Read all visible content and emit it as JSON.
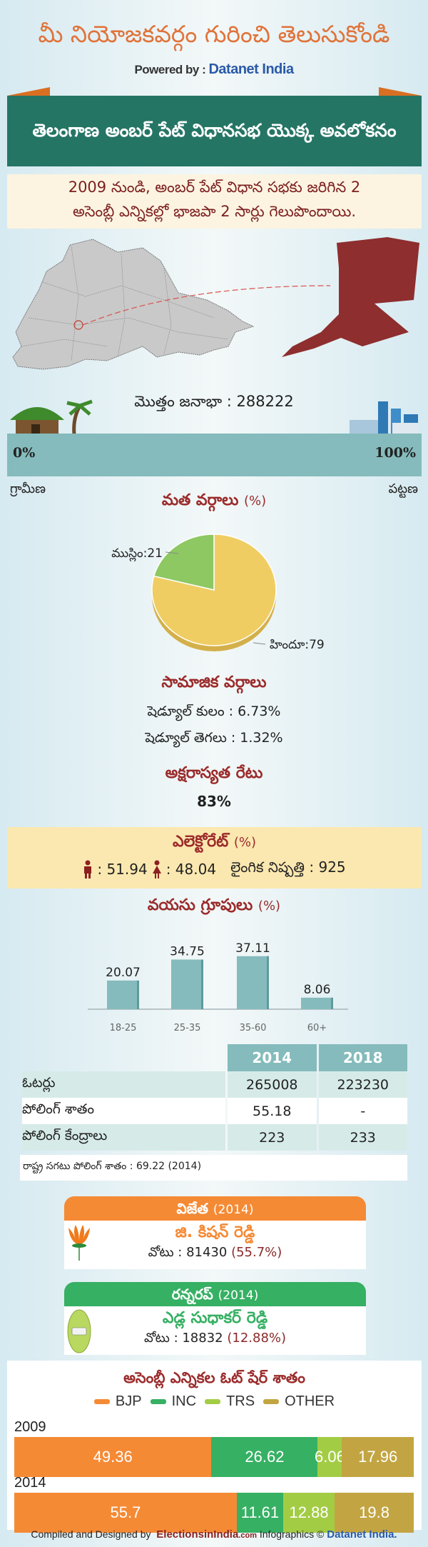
{
  "header": {
    "title": "మీ నియోజకవర్గం గురించి తెలుసుకోండి",
    "powered_by": "Powered by :",
    "brand": "Datanet India"
  },
  "ribbon": {
    "title": "తెలంగాణ అంబర్ పేట్ విధానసభ యొక్క అవలోకనం"
  },
  "summary": {
    "line1": "2009 నుండి, అంబర్ పేట్ విధాన సభకు జరిగిన 2",
    "line2": "అసెంబ్లీ ఎన్నికల్లో భాజపా 2 సార్లు గెలుపొందాయి."
  },
  "population": {
    "label": "మొత్తం జనాభా : 288222",
    "rural_pct": "0%",
    "urban_pct": "100%",
    "rural_label": "గ్రామీణ",
    "urban_label": "పట్టణ",
    "urban_fraction": 1.0
  },
  "religion": {
    "heading": "మత వర్గాలు",
    "unit": "(%)"
  },
  "chart_data": [
    {
      "type": "pie",
      "title": "మత వర్గాలు (%)",
      "slices": [
        {
          "label": "హిందూ:79",
          "name": "హిందూ",
          "value": 79,
          "color": "#f0cd63"
        },
        {
          "label": "ముస్లిం:21",
          "name": "ముస్లిం",
          "value": 21,
          "color": "#8dc863"
        }
      ]
    },
    {
      "type": "bar",
      "title": "వయసు గ్రూపులు (%)",
      "categories": [
        "18-25",
        "25-35",
        "35-60",
        "60+"
      ],
      "values": [
        20.07,
        34.75,
        37.11,
        8.06
      ],
      "labels": [
        "20.07",
        "34.75",
        "37.11",
        "8.06"
      ],
      "color": "#85bbbc"
    },
    {
      "type": "bar",
      "stacked": true,
      "orientation": "horizontal",
      "title": "అసెంబ్లీ ఎన్నికల ఓట్ షేర్ శాతం",
      "legend": "top",
      "series_names": [
        "BJP",
        "INC",
        "TRS",
        "OTHER"
      ],
      "colors": [
        "#f58a35",
        "#36b063",
        "#a3cc45",
        "#c2a542"
      ],
      "rows": [
        {
          "year": "2009",
          "values": [
            49.36,
            26.62,
            6.06,
            17.96
          ],
          "labels": [
            "49.36",
            "26.62",
            "6.06",
            "17.96"
          ]
        },
        {
          "year": "2014",
          "values": [
            55.7,
            11.61,
            12.88,
            19.8
          ],
          "labels": [
            "55.7",
            "11.61",
            "12.88",
            "19.8"
          ]
        }
      ]
    }
  ],
  "social": {
    "heading": "సామాజిక వర్గాలు",
    "sc": "షెడ్యూల్ కులం :   6.73%",
    "st": "షెడ్యూల్ తెగలు :   1.32%"
  },
  "literacy": {
    "heading": "అక్షరాస్యత రేటు",
    "value": "83%"
  },
  "electorate": {
    "heading": "ఎలెక్టోరేట్",
    "unit": "(%)",
    "male": ": 51.94",
    "female": ": 48.04",
    "sex_ratio": "లైంగిక నిష్పత్తి : 925"
  },
  "age": {
    "heading": "వయసు గ్రూపులు",
    "unit": "(%)"
  },
  "table": {
    "years": [
      "2014",
      "2018"
    ],
    "rows": [
      {
        "label": "ఓటర్లు",
        "v2014": "265008",
        "v2018": "223230"
      },
      {
        "label": "పోలింగ్ శాతం",
        "v2014": "55.18",
        "v2018": "-"
      },
      {
        "label": "పోలింగ్ కేంద్రాలు",
        "v2014": "223",
        "v2018": "233"
      }
    ],
    "footnote": "రాష్ట్ర సగటు పోలింగ్ శాతం : 69.22 (2014)"
  },
  "winner": {
    "heading": "విజేత",
    "year": "(2014)",
    "name": "జి. కిషన్ రెడ్డి",
    "votes": "వోటు : 81430",
    "pct": "(55.7%)",
    "color": "#f58a35",
    "party_icon": "lotus-icon"
  },
  "runner": {
    "heading": "రన్నరప్",
    "year": "(2014)",
    "name": "ఎడ్ల సుధాకర్ రెడ్డి",
    "votes": "వోటు : 18832",
    "pct": "(12.88%)",
    "color": "#36b063",
    "party_icon": "car-icon"
  },
  "credit": {
    "compiled": "Compiled and Designed by",
    "site": "ElectionsinIndia",
    "site_tld": ".com",
    "infographics": "Infographics ©",
    "brand": "Datanet India."
  }
}
